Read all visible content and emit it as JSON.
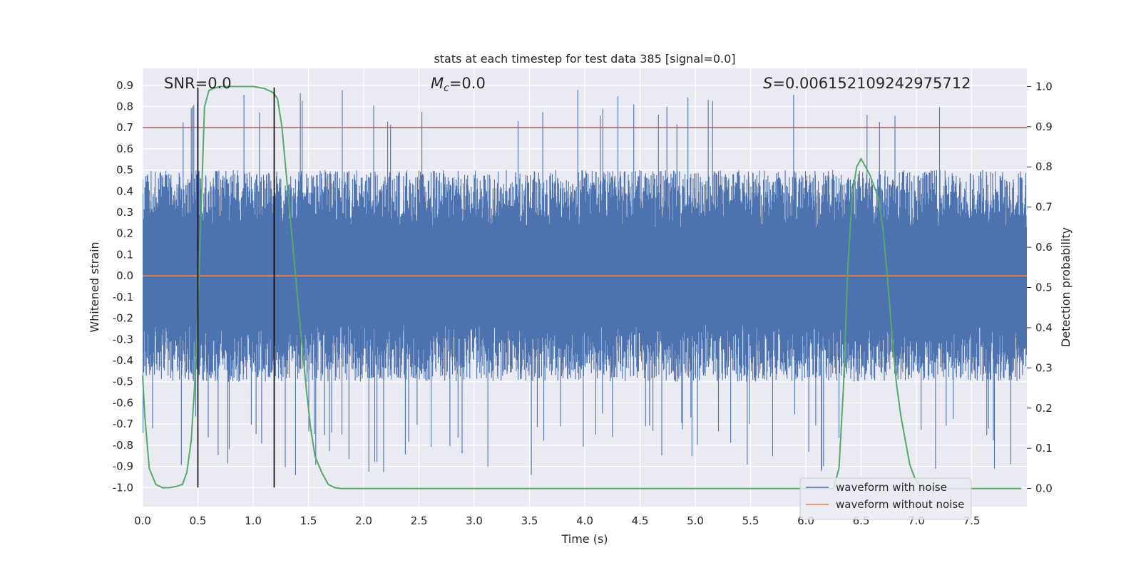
{
  "chart_data": {
    "type": "line",
    "title": "stats at each timestep for test data 385 [signal=0.0]",
    "xlabel": "Time (s)",
    "ylabel": "Whitened strain",
    "y2label": "Detection probability",
    "xlim": [
      0.0,
      8.0
    ],
    "ylim": [
      -1.09,
      0.98
    ],
    "y2lim": [
      -0.045,
      1.045
    ],
    "xticks": [
      "0.0",
      "0.5",
      "1.0",
      "1.5",
      "2.0",
      "2.5",
      "3.0",
      "3.5",
      "4.0",
      "4.5",
      "5.0",
      "5.5",
      "6.0",
      "6.5",
      "7.0",
      "7.5"
    ],
    "yticks": [
      "0.9",
      "0.8",
      "0.7",
      "0.6",
      "0.5",
      "0.4",
      "0.3",
      "0.2",
      "0.1",
      "0.0",
      "-0.1",
      "-0.2",
      "-0.3",
      "-0.4",
      "-0.5",
      "-0.6",
      "-0.7",
      "-0.8",
      "-0.9",
      "-1.0"
    ],
    "y2ticks": [
      "1.0",
      "0.9",
      "0.8",
      "0.7",
      "0.6",
      "0.5",
      "0.4",
      "0.3",
      "0.2",
      "0.1",
      "0.0"
    ],
    "annotations": {
      "snr": "SNR=0.0",
      "mc_symbol": "M",
      "mc_sub": "c",
      "mc_value": "=0.0",
      "s_symbol": "S",
      "s_value": "=0.006152109242975712"
    },
    "threshold": {
      "value": 0.7,
      "color": "#c44e52"
    },
    "vertical_markers": [
      0.5,
      1.19
    ],
    "series": [
      {
        "name": "waveform with noise",
        "color": "#4c72b0",
        "axis": "left",
        "noise_envelope": {
          "upper_typical": 0.5,
          "lower_typical": -0.5,
          "upper_max": 0.88,
          "lower_min": -1.0
        }
      },
      {
        "name": "waveform without noise",
        "color": "#dd8452",
        "axis": "left",
        "value": 0.0
      },
      {
        "name": "detection probability",
        "color": "#55a868",
        "axis": "right",
        "x": [
          0.0,
          0.02,
          0.06,
          0.12,
          0.18,
          0.24,
          0.3,
          0.36,
          0.4,
          0.44,
          0.48,
          0.5,
          0.52,
          0.56,
          0.6,
          0.64,
          0.7,
          0.8,
          1.0,
          1.1,
          1.14,
          1.18,
          1.22,
          1.26,
          1.3,
          1.36,
          1.42,
          1.48,
          1.52,
          1.56,
          1.62,
          1.68,
          1.74,
          1.8,
          2.0,
          3.0,
          4.0,
          5.0,
          6.0,
          6.25,
          6.3,
          6.34,
          6.38,
          6.42,
          6.46,
          6.5,
          6.54,
          6.58,
          6.62,
          6.66,
          6.7,
          6.74,
          6.78,
          6.82,
          6.86,
          6.9,
          6.94,
          6.98,
          7.02,
          7.06,
          7.1,
          7.5,
          7.95
        ],
        "values": [
          0.28,
          0.18,
          0.05,
          0.01,
          0.002,
          0.002,
          0.005,
          0.01,
          0.04,
          0.12,
          0.3,
          0.45,
          0.62,
          0.95,
          0.99,
          0.995,
          1.0,
          1.0,
          1.0,
          0.995,
          0.99,
          0.985,
          0.97,
          0.9,
          0.78,
          0.6,
          0.42,
          0.25,
          0.15,
          0.08,
          0.04,
          0.01,
          0.002,
          0.0,
          0.0,
          0.0,
          0.0,
          0.0,
          0.0,
          0.0,
          0.05,
          0.25,
          0.55,
          0.73,
          0.8,
          0.82,
          0.8,
          0.78,
          0.75,
          0.72,
          0.64,
          0.52,
          0.38,
          0.26,
          0.18,
          0.12,
          0.06,
          0.03,
          0.01,
          0.0,
          0.0,
          0.0,
          0.0
        ]
      }
    ],
    "legend": {
      "position": "lower-right",
      "entries": [
        {
          "label": "waveform with noise",
          "color": "#4c72b0"
        },
        {
          "label": "waveform without noise",
          "color": "#dd8452"
        }
      ]
    }
  }
}
